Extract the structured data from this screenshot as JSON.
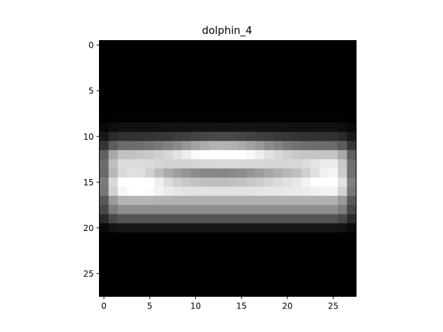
{
  "chart_data": {
    "type": "heatmap",
    "title": "dolphin_4",
    "colormap": "gray",
    "rows": 28,
    "cols": 28,
    "xlim": [
      -0.5,
      27.5
    ],
    "ylim": [
      27.5,
      -0.5
    ],
    "xticks": [
      0,
      5,
      10,
      15,
      20,
      25
    ],
    "yticks": [
      0,
      5,
      10,
      15,
      20,
      25
    ],
    "grid": false,
    "intensity_model": {
      "description": "pixel brightness 0-1 approximated by horizontal bands",
      "col_center": 13.5,
      "col_halfwidth": 13.5,
      "bands": [
        {
          "row": 10,
          "amp": 0.1,
          "sigma": 0.9
        },
        {
          "row": 12.5,
          "amp": 0.78,
          "sigma": 1.2
        },
        {
          "row": 15.5,
          "amp": 0.95,
          "sigma": 1.3
        },
        {
          "row": 18.2,
          "amp": 0.42,
          "sigma": 1.0
        }
      ],
      "center_dip": {
        "row": 14.2,
        "col": 12.5,
        "amp": 0.35,
        "sigma_row": 0.9,
        "sigma_col": 5.5
      },
      "top_bright": {
        "row": 11.6,
        "col": 13,
        "amp": 0.35,
        "sigma_row": 1.0,
        "sigma_col": 4.0
      },
      "left_bright": {
        "row": 14.8,
        "col": 4,
        "amp": 0.18,
        "sigma_row": 1.0,
        "sigma_col": 1.6
      },
      "right_bright": {
        "row": 14.2,
        "col": 24.5,
        "amp": 0.15,
        "sigma_row": 1.0,
        "sigma_col": 1.5
      }
    }
  }
}
